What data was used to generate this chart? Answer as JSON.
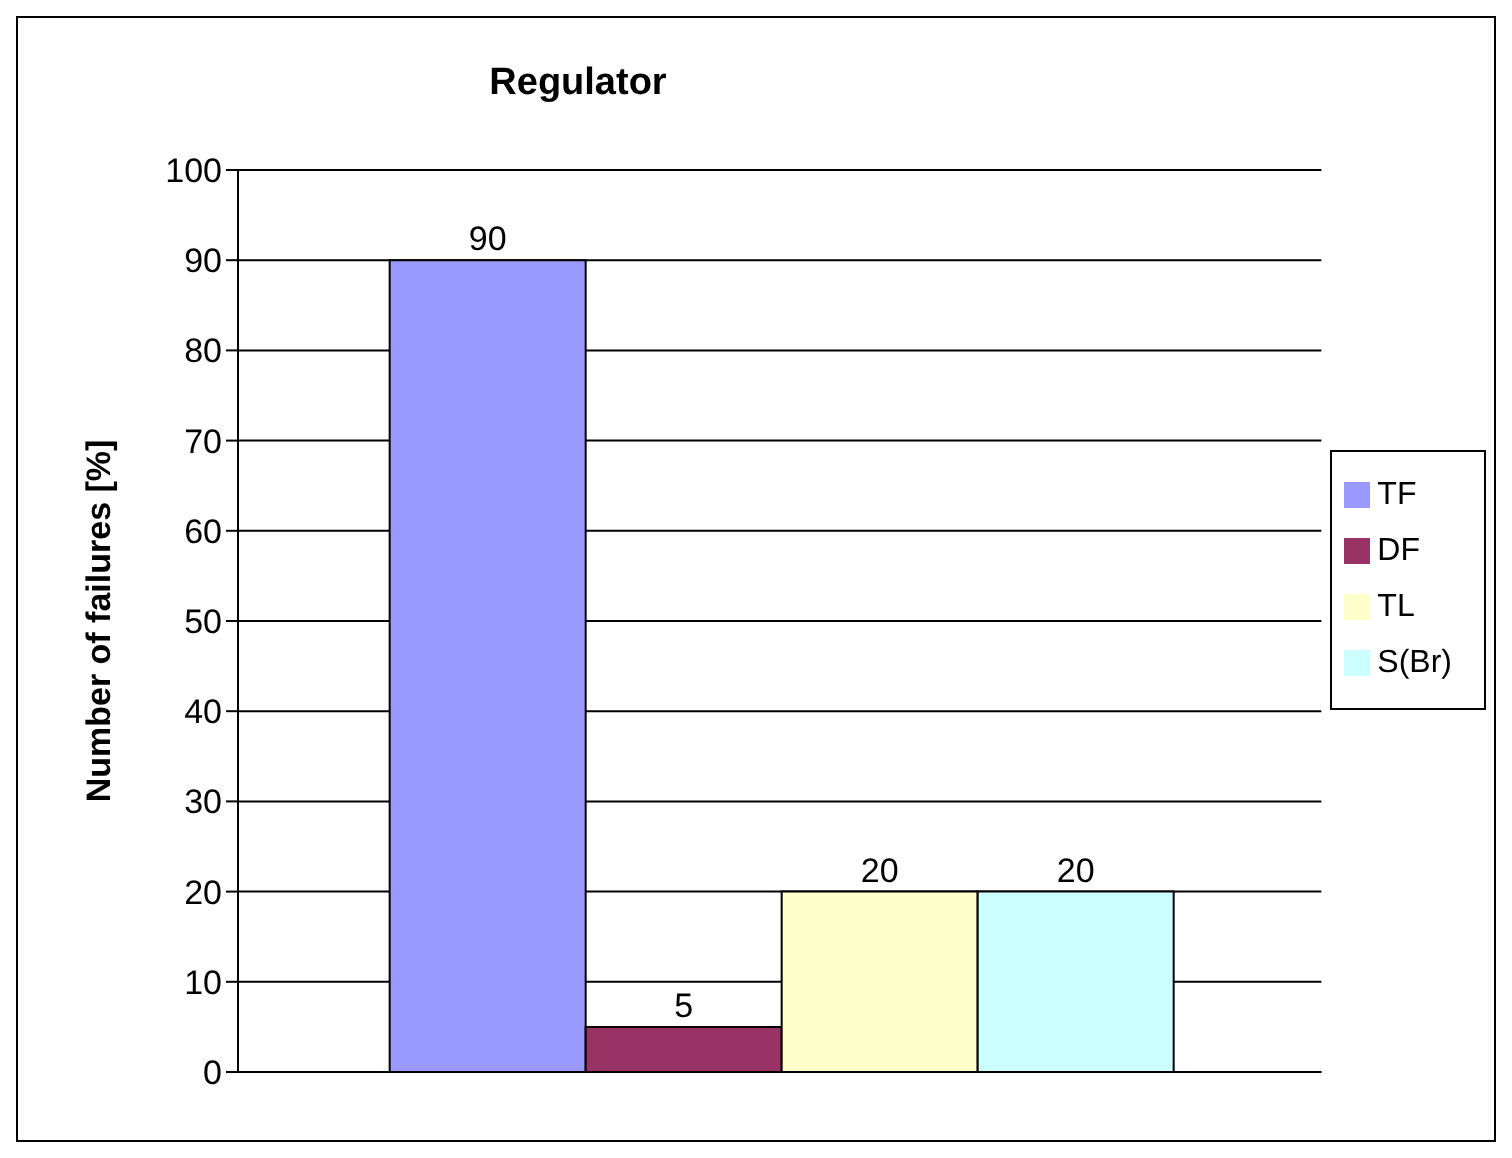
{
  "chart_data": {
    "type": "bar",
    "title": "Regulator",
    "ylabel": "Number of failures [%]",
    "categories": [
      null
    ],
    "series": [
      {
        "name": "TF",
        "color": "#9999ff",
        "values": [
          90
        ]
      },
      {
        "name": "DF",
        "color": "#993366",
        "values": [
          5
        ]
      },
      {
        "name": "TL",
        "color": "#ffffcc",
        "values": [
          20
        ]
      },
      {
        "name": "S(Br)",
        "color": "#ccffff",
        "values": [
          20
        ]
      }
    ],
    "ylim": [
      0,
      100
    ],
    "yticks": [
      0,
      10,
      20,
      30,
      40,
      50,
      60,
      70,
      80,
      90,
      100
    ],
    "grid": "y",
    "legend": "right",
    "data_labels": true
  }
}
